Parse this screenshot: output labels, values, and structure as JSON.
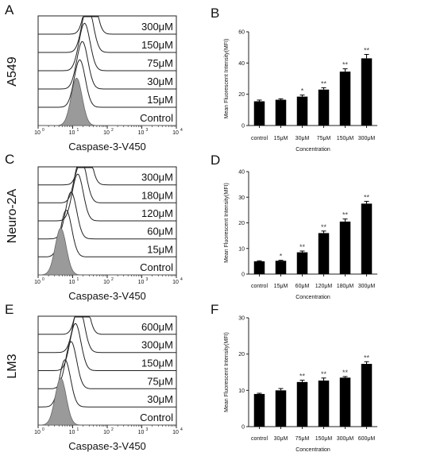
{
  "chart_data": [
    {
      "panel": "A",
      "type": "histogram-overlay",
      "cell_line": "A549",
      "xlabel": "Caspase-3-V450",
      "x_scale": "log",
      "xlim": [
        1,
        10000
      ],
      "tick_labels": [
        "10",
        "10",
        "10",
        "10",
        "10"
      ],
      "tick_exponents": [
        "0",
        "1",
        "2",
        "3",
        "4"
      ],
      "overlay_labels": [
        "300μM",
        "150μM",
        "75μM",
        "30μM",
        "15μM",
        "Control"
      ],
      "peak_positions": [
        33,
        27,
        22,
        19,
        16,
        13
      ]
    },
    {
      "panel": "B",
      "type": "bar",
      "title": "",
      "xlabel": "Concentration",
      "ylabel": "Mean Fluorescent Intensity(MFI)",
      "ylim": [
        0,
        60
      ],
      "yticks": [
        0,
        20,
        40,
        60
      ],
      "categories": [
        "control",
        "15μM",
        "30μM",
        "75μM",
        "150μM",
        "300μM"
      ],
      "values": [
        15.5,
        16.5,
        18.5,
        23,
        34.5,
        43
      ],
      "errors": [
        0.8,
        0.6,
        1.0,
        1.2,
        1.8,
        2.5
      ],
      "significance": [
        "",
        "",
        "*",
        "**",
        "**",
        "**"
      ]
    },
    {
      "panel": "C",
      "type": "histogram-overlay",
      "cell_line": "Neuro-2A",
      "xlabel": "Caspase-3-V450",
      "x_scale": "log",
      "xlim": [
        1,
        10000
      ],
      "tick_labels": [
        "10",
        "10",
        "10",
        "10",
        "10"
      ],
      "tick_exponents": [
        "0",
        "1",
        "2",
        "3",
        "4"
      ],
      "overlay_labels": [
        "300μM",
        "180μM",
        "120μM",
        "60μM",
        "15μM",
        "Control"
      ],
      "peak_positions": [
        23,
        17,
        14,
        9,
        6.5,
        4.5
      ]
    },
    {
      "panel": "D",
      "type": "bar",
      "title": "",
      "xlabel": "Concentration",
      "ylabel": "Mean Fluorescent Intensity(MFI)",
      "ylim": [
        0,
        40
      ],
      "yticks": [
        0,
        10,
        20,
        30,
        40
      ],
      "categories": [
        "control",
        "15μM",
        "60μM",
        "120μM",
        "180μM",
        "300μM"
      ],
      "values": [
        5,
        5.2,
        8.5,
        16,
        20.5,
        27.5
      ],
      "errors": [
        0.2,
        0.2,
        0.5,
        0.8,
        1.0,
        0.9
      ],
      "significance": [
        "",
        "*",
        "**",
        "**",
        "**",
        "**"
      ]
    },
    {
      "panel": "E",
      "type": "histogram-overlay",
      "cell_line": "LM3",
      "xlabel": "Caspase-3-V450",
      "x_scale": "log",
      "xlim": [
        1,
        10000
      ],
      "tick_labels": [
        "10",
        "10",
        "10",
        "10",
        "10"
      ],
      "tick_exponents": [
        "0",
        "1",
        "2",
        "3",
        "4"
      ],
      "overlay_labels": [
        "600μM",
        "300μM",
        "150μM",
        "75μM",
        "30μM",
        "Control"
      ],
      "peak_positions": [
        19,
        15,
        12,
        9,
        6,
        4.5
      ]
    },
    {
      "panel": "F",
      "type": "bar",
      "title": "",
      "xlabel": "Concentration",
      "ylabel": "Mean Fluorescent Intensity(MFI)",
      "ylim": [
        0,
        30
      ],
      "yticks": [
        0,
        10,
        20,
        30
      ],
      "categories": [
        "control",
        "30μM",
        "75μM",
        "150μM",
        "300μM",
        "600μM"
      ],
      "values": [
        9,
        10,
        12.3,
        12.7,
        13.5,
        17.3
      ],
      "errors": [
        0.2,
        0.5,
        0.5,
        0.7,
        0.3,
        0.6
      ],
      "significance": [
        "",
        "",
        "**",
        "**",
        "**",
        "**"
      ]
    }
  ]
}
